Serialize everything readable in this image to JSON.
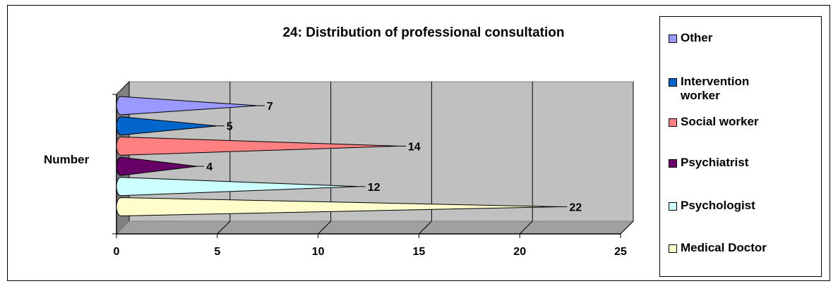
{
  "chart_data": {
    "type": "bar",
    "orientation": "horizontal",
    "title": "24: Distribution of professional consultation",
    "ylabel": "Number",
    "xlim": [
      0,
      25
    ],
    "xticks": [
      "0",
      "5",
      "10",
      "15",
      "20",
      "25"
    ],
    "grid": true,
    "legend_position": "right",
    "series": [
      {
        "name": "Other",
        "value": 7,
        "color": "#9999FF"
      },
      {
        "name": "Intervention worker",
        "value": 5,
        "color": "#0066CC"
      },
      {
        "name": "Social worker",
        "value": 14,
        "color": "#FF8080"
      },
      {
        "name": "Psychiatrist",
        "value": 4,
        "color": "#660066"
      },
      {
        "name": "Psychologist",
        "value": 12,
        "color": "#CCFFFF"
      },
      {
        "name": "Medical Doctor",
        "value": 22,
        "color": "#FFFFCC"
      }
    ]
  }
}
